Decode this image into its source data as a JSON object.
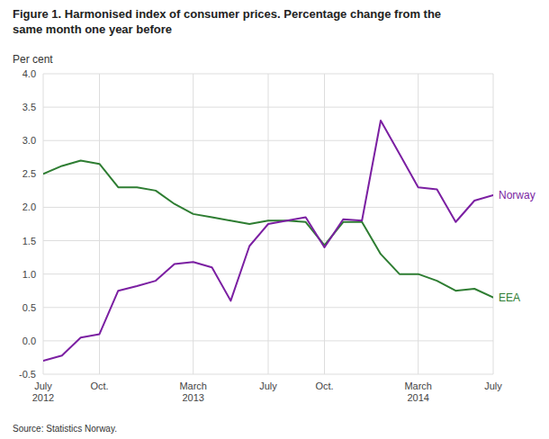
{
  "chart_data": {
    "type": "line",
    "title": "Figure 1. Harmonised index of consumer prices. Percentage change from the\nsame month one year before",
    "y_label": "Per cent",
    "source": "Source: Statistics Norway.",
    "categories": [
      "July\n2012",
      null,
      null,
      "Oct.",
      null,
      null,
      null,
      null,
      "March\n2013",
      null,
      null,
      null,
      "July",
      null,
      null,
      "Oct.",
      null,
      null,
      null,
      null,
      "March\n2014",
      null,
      null,
      null,
      "July"
    ],
    "series": [
      {
        "name": "EEA",
        "color": "#2e7d32",
        "values": [
          2.5,
          2.62,
          2.7,
          2.65,
          2.3,
          2.3,
          2.25,
          2.05,
          1.9,
          1.85,
          1.8,
          1.75,
          1.8,
          1.8,
          1.78,
          1.43,
          1.78,
          1.78,
          1.3,
          1.0,
          1.0,
          0.9,
          0.75,
          0.78,
          0.65
        ]
      },
      {
        "name": "Norway",
        "color": "#7b1fa2",
        "values": [
          -0.3,
          -0.22,
          0.05,
          0.1,
          0.75,
          0.82,
          0.9,
          1.15,
          1.18,
          1.1,
          0.6,
          1.42,
          1.75,
          1.8,
          1.85,
          1.4,
          1.82,
          1.8,
          3.3,
          2.8,
          2.3,
          2.27,
          1.78,
          2.1,
          2.18
        ]
      }
    ],
    "ylim": [
      -0.5,
      4.0
    ],
    "yticks": [
      -0.5,
      {
        "value": 0.0,
        "label": "0.0"
      },
      0.5,
      {
        "value": 1.0,
        "label": "1.0"
      },
      1.5,
      {
        "value": 2.0,
        "label": "2.0"
      },
      2.5,
      {
        "value": 3.0,
        "label": "3.0"
      },
      3.5,
      {
        "value": 4.0,
        "label": "4.0"
      }
    ],
    "grid": true
  }
}
